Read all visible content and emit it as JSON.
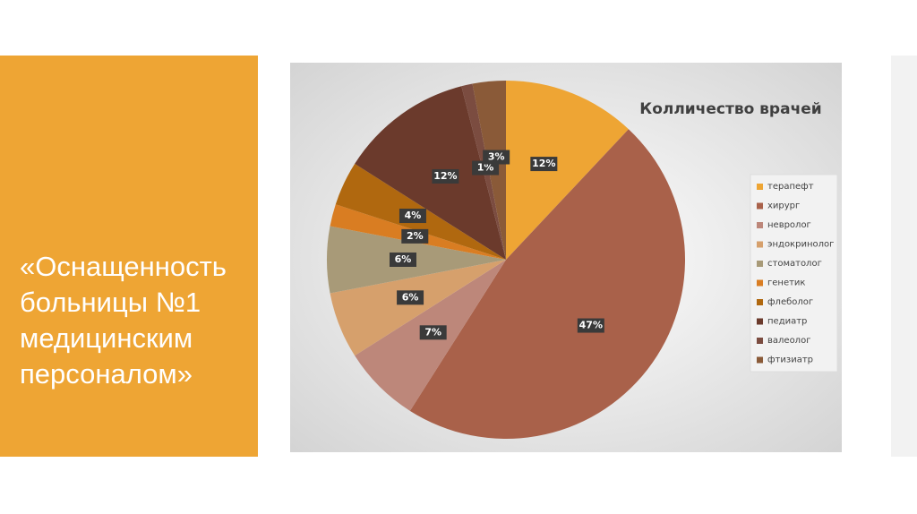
{
  "slide_title": "«Оснащенность больницы №1 медицинским персоналом»",
  "chart_data": {
    "type": "pie",
    "title": "Колличество врачей",
    "categories": [
      "терапефт",
      "хирург",
      "невролог",
      "эндокринолог",
      "стоматолог",
      "генетик",
      "флеболог",
      "педиатр",
      "валеолог",
      "фтизиатр"
    ],
    "values": [
      12,
      47,
      7,
      6,
      6,
      2,
      4,
      12,
      1,
      3
    ],
    "value_labels": [
      "12%",
      "47%",
      "7%",
      "6%",
      "6%",
      "2%",
      "4%",
      "12%",
      "1%",
      "3%"
    ],
    "colors": [
      "#eea534",
      "#a9614a",
      "#bd877a",
      "#d6a06c",
      "#a89a78",
      "#d97d22",
      "#b0680f",
      "#6b3a2c",
      "#7b4c40",
      "#8a5a38"
    ]
  }
}
